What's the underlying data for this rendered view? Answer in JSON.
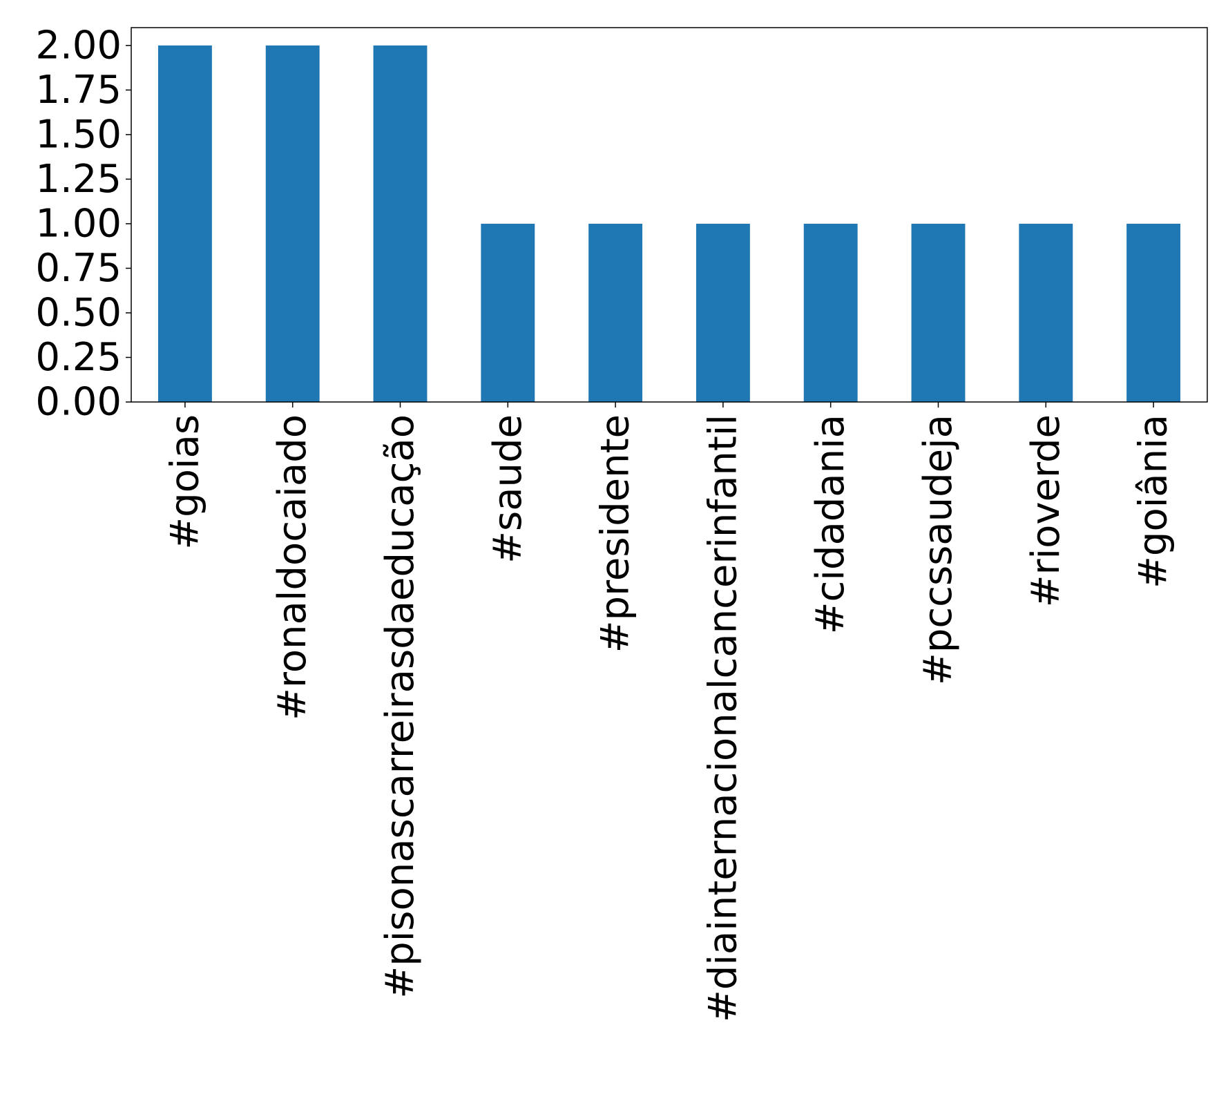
{
  "chart_data": {
    "type": "bar",
    "categories": [
      "#goias",
      "#ronaldocaiado",
      "#pisonascarreirasdaeducação",
      "#saude",
      "#presidente",
      "#diainternacionalcancerinfantil",
      "#cidadania",
      "#pccssaudeja",
      "#rioverde",
      "#goiânia"
    ],
    "values": [
      2,
      2,
      2,
      1,
      1,
      1,
      1,
      1,
      1,
      1
    ],
    "yticks": [
      "0.00",
      "0.25",
      "0.50",
      "0.75",
      "1.00",
      "1.25",
      "1.50",
      "1.75",
      "2.00"
    ],
    "ylim": [
      0,
      2.1
    ],
    "grid": false,
    "colors": {
      "bar": "#1f77b4",
      "axis": "#000000"
    }
  }
}
